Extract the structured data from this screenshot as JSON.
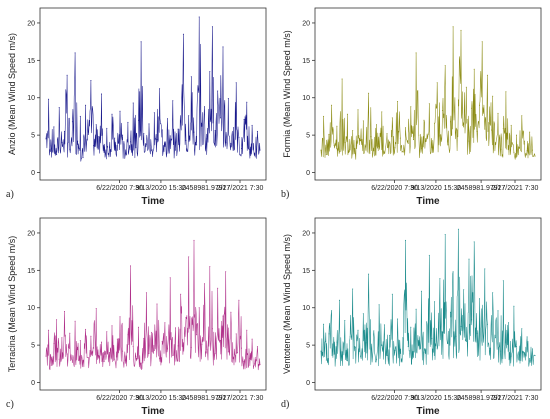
{
  "chart_data": [
    {
      "type": "line",
      "panel_label": "a)",
      "ylabel": "Anzio (Mean Wind Speed m/s)",
      "xlabel": "Time",
      "x_tick_labels": [
        "6/22/2020 7:30",
        "9/13/2020 15:30",
        "2458981.97917",
        "2/27/2021 7:30"
      ],
      "y_ticks": [
        0,
        5,
        10,
        15,
        20
      ],
      "ylim": [
        -1,
        22
      ],
      "color": "#1a1a8c",
      "grid": false,
      "series": [
        {
          "values": [
            4.5,
            9.8,
            3.2,
            6.1,
            2.4,
            8.7,
            4.0,
            5.5,
            13.0,
            3.1,
            6.8,
            16.0,
            4.2,
            7.5,
            2.0,
            9.0,
            5.1,
            12.3,
            3.6,
            6.4,
            4.8,
            10.5,
            2.7,
            5.9,
            3.4,
            7.8,
            4.6,
            3.0,
            8.2,
            5.0,
            2.5,
            6.7,
            4.1,
            9.3,
            3.3,
            7.0,
            17.5,
            5.2,
            3.8,
            6.5,
            2.9,
            8.0,
            4.4,
            11.2,
            5.7,
            3.5,
            7.2,
            4.9,
            9.6,
            3.0,
            5.8,
            6.9,
            18.5,
            4.3,
            7.6,
            12.8,
            5.4,
            3.7,
            20.8,
            6.2,
            8.8,
            4.5,
            13.5,
            19.5,
            5.6,
            10.9,
            7.3,
            16.8,
            4.0,
            9.9,
            3.9,
            6.0,
            12.0,
            4.7,
            3.2,
            7.1,
            9.4,
            3.1,
            6.3,
            2.6,
            5.5,
            3.0
          ]
        }
      ]
    },
    {
      "type": "line",
      "panel_label": "b)",
      "ylabel": "Formia (Mean Wind Speed m/s)",
      "xlabel": "Time",
      "x_tick_labels": [
        "6/22/2020 7:30",
        "9/13/2020 15:30",
        "2458981.97917",
        "2/27/2021 7:30"
      ],
      "y_ticks": [
        0,
        5,
        10,
        15,
        20
      ],
      "ylim": [
        -1,
        22
      ],
      "color": "#8c8c14",
      "grid": false,
      "series": [
        {
          "values": [
            3.0,
            7.5,
            2.4,
            5.1,
            9.0,
            3.6,
            6.2,
            2.8,
            12.5,
            4.0,
            7.8,
            3.1,
            5.6,
            2.5,
            8.4,
            4.3,
            6.9,
            3.0,
            10.6,
            4.8,
            2.9,
            6.4,
            3.5,
            8.1,
            2.6,
            5.2,
            4.1,
            7.3,
            3.3,
            9.5,
            4.6,
            2.8,
            6.0,
            3.9,
            8.8,
            4.4,
            16.0,
            5.0,
            3.2,
            7.0,
            4.5,
            9.2,
            3.4,
            6.6,
            12.0,
            4.9,
            8.3,
            14.3,
            3.7,
            6.8,
            19.5,
            5.3,
            9.7,
            19.0,
            6.1,
            11.4,
            4.2,
            8.6,
            13.8,
            5.5,
            9.0,
            17.5,
            5.8,
            13.0,
            6.5,
            10.2,
            4.0,
            7.9,
            3.1,
            5.9,
            10.8,
            3.6,
            6.3,
            2.7,
            5.0,
            3.3,
            7.6,
            4.2,
            2.9,
            5.4,
            3.0,
            2.2
          ]
        }
      ]
    },
    {
      "type": "line",
      "panel_label": "c)",
      "ylabel": "Terracina (Mean Wind Speed m/s)",
      "xlabel": "Time",
      "x_tick_labels": [
        "6/22/2020 7:30",
        "9/13/2020 15:30",
        "2458981.97917",
        "2/27/2021 7:30"
      ],
      "y_ticks": [
        0,
        5,
        10,
        15,
        20
      ],
      "ylim": [
        -1,
        22
      ],
      "color": "#b0308a",
      "grid": false,
      "series": [
        {
          "values": [
            3.5,
            7.0,
            2.3,
            5.2,
            8.4,
            3.1,
            6.0,
            9.5,
            3.8,
            6.6,
            2.7,
            8.2,
            4.4,
            5.6,
            2.9,
            7.1,
            3.3,
            6.2,
            4.6,
            9.9,
            3.6,
            5.4,
            2.8,
            6.8,
            4.0,
            7.6,
            3.1,
            5.8,
            8.8,
            4.2,
            3.0,
            6.4,
            15.6,
            4.8,
            3.5,
            7.4,
            2.6,
            5.9,
            12.0,
            3.9,
            6.7,
            4.3,
            10.5,
            3.2,
            5.5,
            8.0,
            4.5,
            14.0,
            3.6,
            7.3,
            4.9,
            11.8,
            5.3,
            8.7,
            16.8,
            4.7,
            19.0,
            6.4,
            10.0,
            5.1,
            13.2,
            4.4,
            15.5,
            7.2,
            3.9,
            12.6,
            5.6,
            8.9,
            14.8,
            4.1,
            9.4,
            3.4,
            6.5,
            11.0,
            4.6,
            2.8,
            7.0,
            3.2,
            5.8,
            2.5,
            4.8,
            2.4
          ]
        }
      ]
    },
    {
      "type": "line",
      "panel_label": "d)",
      "ylabel": "Ventotene (Mean Wind Speed m/s)",
      "xlabel": "Time",
      "x_tick_labels": [
        "6/22/2020 7:30",
        "9/13/2020 15:30",
        "2458981.97917",
        "2/27/2021 7:30"
      ],
      "y_ticks": [
        0,
        5,
        10,
        15,
        20
      ],
      "ylim": [
        -1,
        22
      ],
      "color": "#1c8c8c",
      "grid": false,
      "series": [
        {
          "values": [
            4.2,
            7.8,
            3.0,
            6.5,
            9.6,
            3.8,
            5.4,
            11.0,
            4.1,
            8.3,
            2.9,
            6.1,
            12.5,
            4.7,
            7.0,
            3.5,
            9.2,
            5.3,
            14.5,
            4.4,
            6.9,
            3.1,
            10.4,
            5.0,
            7.7,
            3.6,
            6.3,
            11.8,
            4.3,
            8.5,
            3.9,
            6.0,
            19.0,
            4.8,
            7.4,
            3.4,
            9.8,
            5.6,
            12.2,
            4.0,
            8.1,
            17.0,
            5.9,
            10.8,
            4.5,
            13.9,
            6.7,
            19.8,
            5.2,
            9.4,
            14.8,
            6.2,
            20.5,
            7.5,
            12.4,
            5.5,
            16.5,
            8.4,
            18.8,
            6.6,
            11.2,
            5.0,
            15.2,
            7.8,
            4.6,
            12.0,
            6.0,
            9.6,
            4.2,
            13.6,
            5.4,
            8.0,
            3.5,
            10.2,
            4.8,
            3.0,
            7.2,
            4.0,
            6.1,
            3.2,
            4.5,
            3.6
          ]
        }
      ]
    }
  ]
}
